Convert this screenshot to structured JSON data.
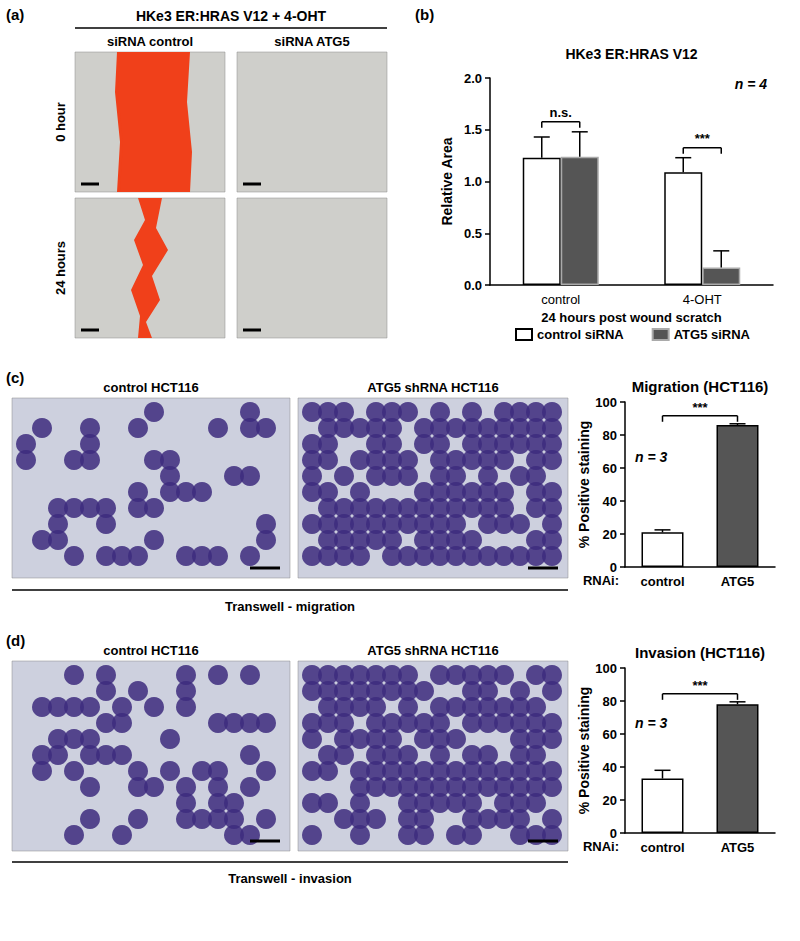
{
  "chart_data": [
    {
      "type": "bar",
      "panel": "(b)",
      "title": "HKe3 ER:HRAS V12",
      "categories": [
        "control",
        "4-OHT"
      ],
      "series": [
        {
          "name": "control siRNA",
          "color": "#ffffff",
          "values": [
            1.23,
            1.09
          ],
          "errors": [
            0.2,
            0.14
          ]
        },
        {
          "name": "ATG5 siRNA",
          "color": "#555555",
          "values": [
            1.24,
            0.17
          ],
          "errors": [
            0.24,
            0.16
          ]
        }
      ],
      "xlabel": "24 hours post wound scratch",
      "ylabel": "Relative Area",
      "ylim": [
        0,
        2
      ],
      "yticks": [
        {
          "value": 0,
          "label": "0.0"
        },
        {
          "value": 0.5,
          "label": "0.5"
        },
        {
          "value": 1,
          "label": "1.0"
        },
        {
          "value": 1.5,
          "label": "1.5"
        },
        {
          "value": 2,
          "label": "2.0"
        }
      ],
      "grid": false,
      "legend": "bottom",
      "annotations": [
        {
          "text": "n = 4"
        },
        {
          "text": "n.s.",
          "category": "control"
        },
        {
          "text": "***",
          "category": "4-OHT"
        }
      ]
    },
    {
      "type": "bar",
      "title": "Migration (HCT116)",
      "categories": [
        "control",
        "ATG5"
      ],
      "values": [
        21,
        86
      ],
      "errors": [
        1.5,
        0.8
      ],
      "colors": [
        "#ffffff",
        "#555555"
      ],
      "xlabel": "RNAi:",
      "ylabel": "% Positive staining",
      "ylim": [
        0,
        100
      ],
      "yticks": [
        0,
        20,
        40,
        60,
        80,
        100
      ],
      "grid": false,
      "annotations": [
        {
          "text": "n = 3"
        },
        {
          "text": "***",
          "categories": [
            "control",
            "ATG5"
          ]
        }
      ]
    },
    {
      "type": "bar",
      "title": "Invasion (HCT116)",
      "categories": [
        "control",
        "ATG5"
      ],
      "values": [
        33,
        78
      ],
      "errors": [
        5,
        1.5
      ],
      "colors": [
        "#ffffff",
        "#555555"
      ],
      "xlabel": "RNAi:",
      "ylabel": "% Positive staining",
      "ylim": [
        0,
        100
      ],
      "yticks": [
        0,
        20,
        40,
        60,
        80,
        100
      ],
      "grid": false,
      "annotations": [
        {
          "text": "n = 3"
        },
        {
          "text": "***",
          "categories": [
            "control",
            "ATG5"
          ]
        }
      ]
    }
  ],
  "images": {
    "a": {
      "label": "(a)",
      "title": "HKe3 ER:HRAS V12 + 4-OHT",
      "columns": [
        "siRNA control",
        "siRNA ATG5"
      ],
      "rows": [
        "0 hour",
        "24 hours"
      ]
    },
    "c": {
      "label": "(c)",
      "columns": [
        "control HCT116",
        "ATG5 shRNA HCT116"
      ],
      "caption": "Transwell - migration"
    },
    "d": {
      "label": "(d)",
      "columns": [
        "control HCT116",
        "ATG5 shRNA HCT116"
      ],
      "caption": "Transwell - invasion"
    }
  }
}
